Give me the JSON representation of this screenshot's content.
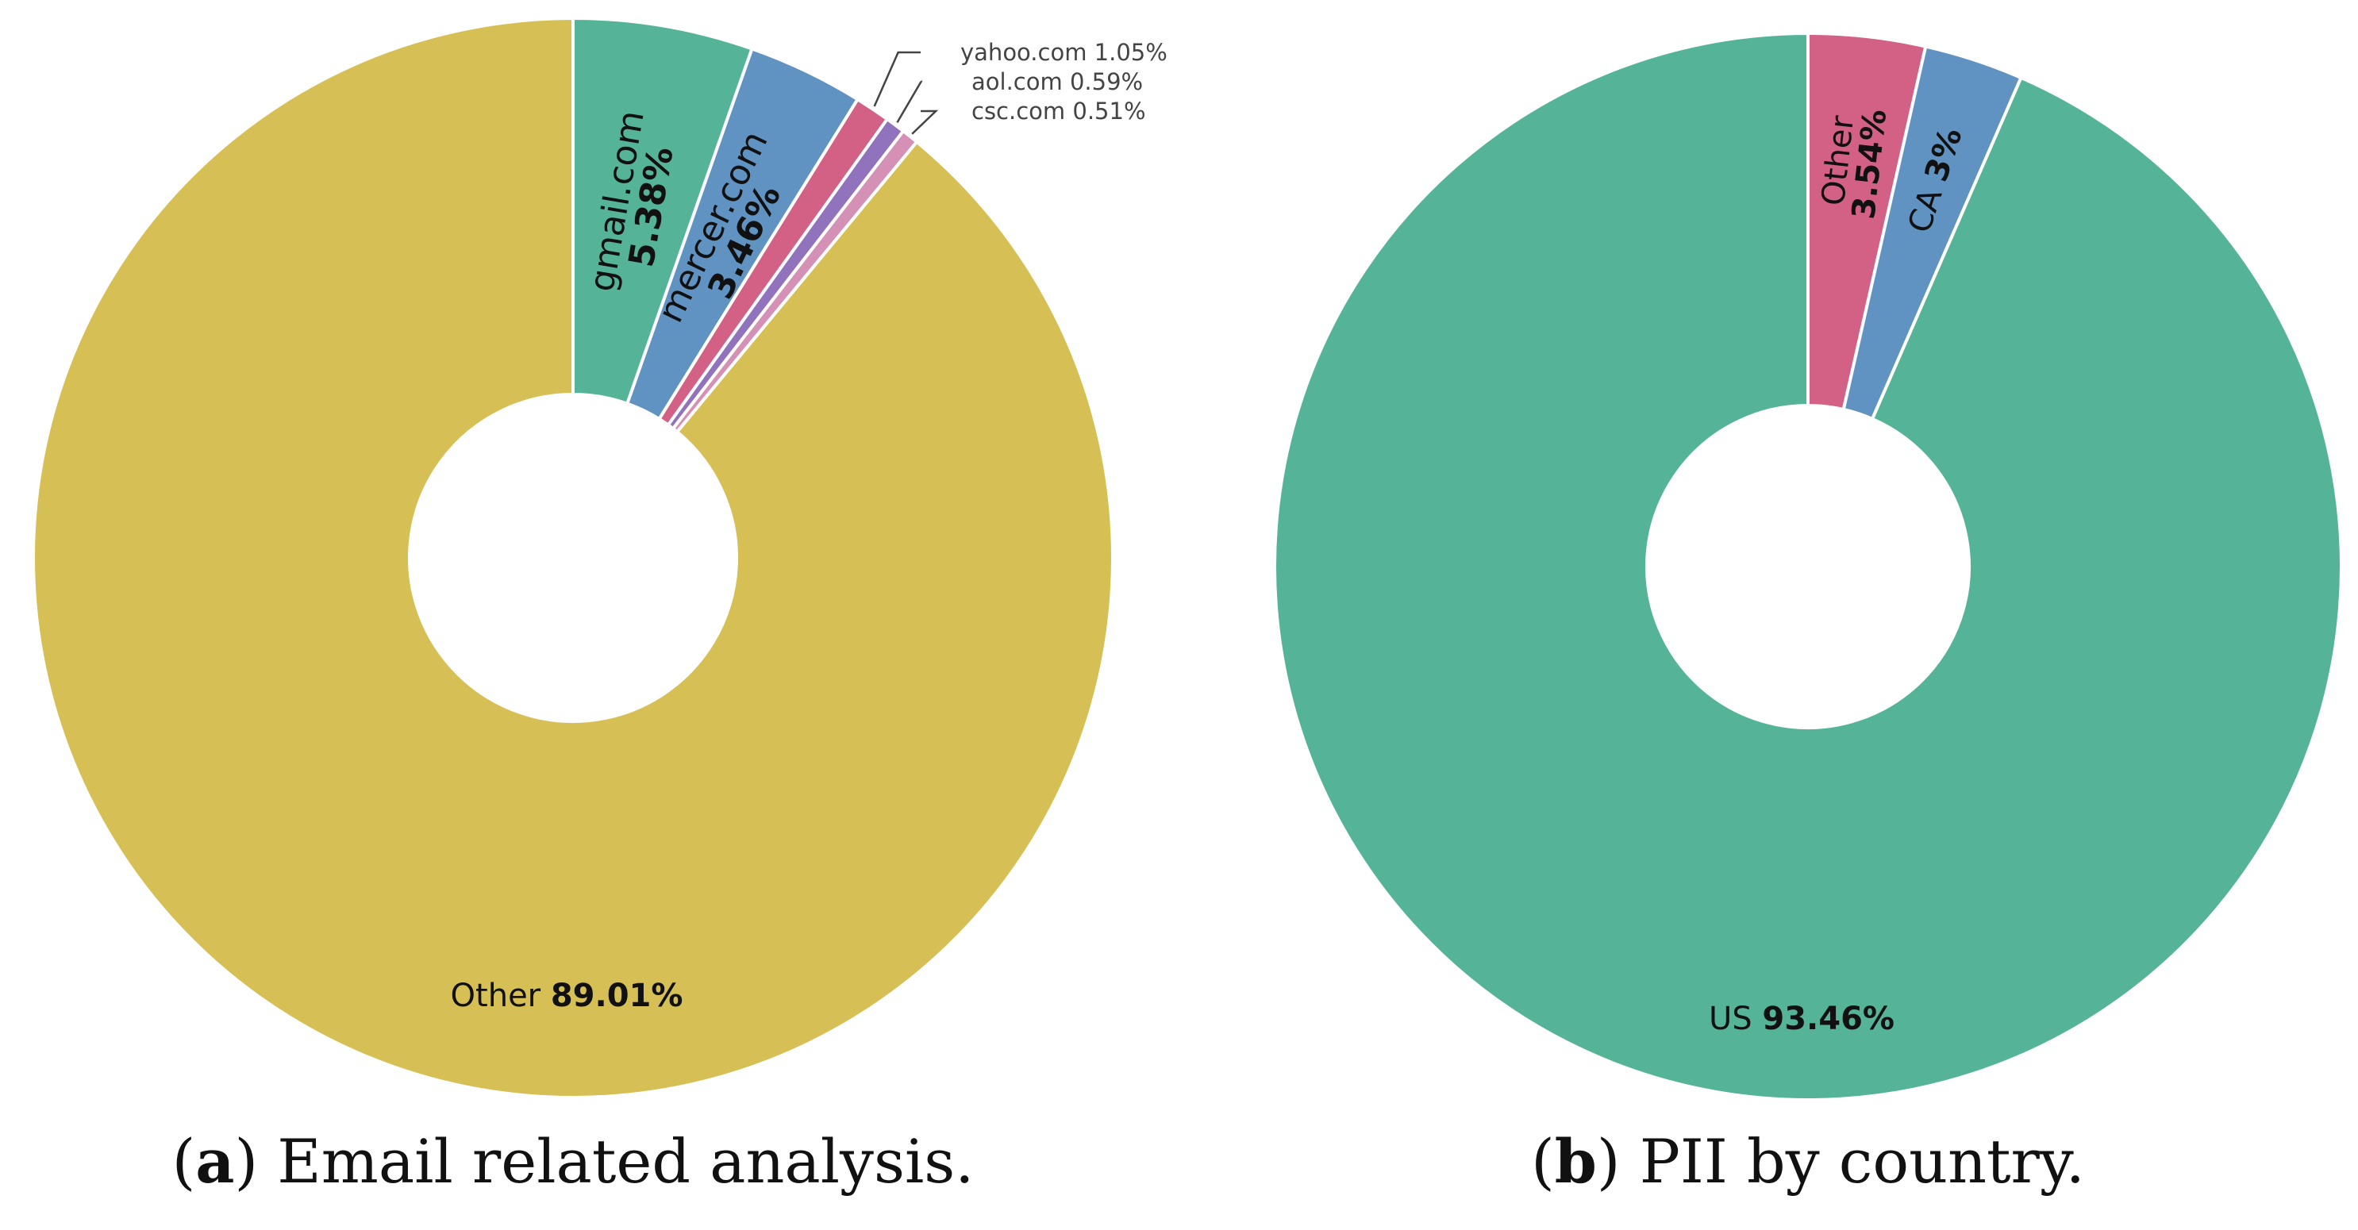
{
  "chart_data": [
    {
      "type": "pie",
      "donut": true,
      "caption_letter": "a",
      "caption": ") Email related analysis.",
      "caption_open": "(",
      "slices": [
        {
          "label": "gmail.com",
          "value": 5.38,
          "display": "5.38%",
          "color": "#55b398",
          "label_mode": "inside"
        },
        {
          "label": "mercer.com",
          "value": 3.46,
          "display": "3.46%",
          "color": "#6193c2",
          "label_mode": "inside"
        },
        {
          "label": "yahoo.com",
          "value": 1.05,
          "display": "1.05%",
          "color": "#d36186",
          "label_mode": "outside"
        },
        {
          "label": "aol.com",
          "value": 0.59,
          "display": "0.59%",
          "color": "#9073bc",
          "label_mode": "outside"
        },
        {
          "label": "csc.com",
          "value": 0.51,
          "display": "0.51%",
          "color": "#d490b5",
          "label_mode": "outside"
        },
        {
          "label": "Other",
          "value": 89.01,
          "display": "89.01%",
          "color": "#d6c056",
          "label_mode": "bottom"
        }
      ]
    },
    {
      "type": "pie",
      "donut": true,
      "caption_letter": "b",
      "caption": ") PII by country.",
      "caption_open": "(",
      "slices": [
        {
          "label": "Other",
          "value": 3.54,
          "display": "3.54%",
          "color": "#d36186",
          "label_mode": "inside"
        },
        {
          "label": "CA",
          "value": 3,
          "display": "3%",
          "color": "#6193c2",
          "label_mode": "inside-inline"
        },
        {
          "label": "US",
          "value": 93.46,
          "display": "93.46%",
          "color": "#55b398",
          "label_mode": "bottom"
        }
      ]
    }
  ]
}
